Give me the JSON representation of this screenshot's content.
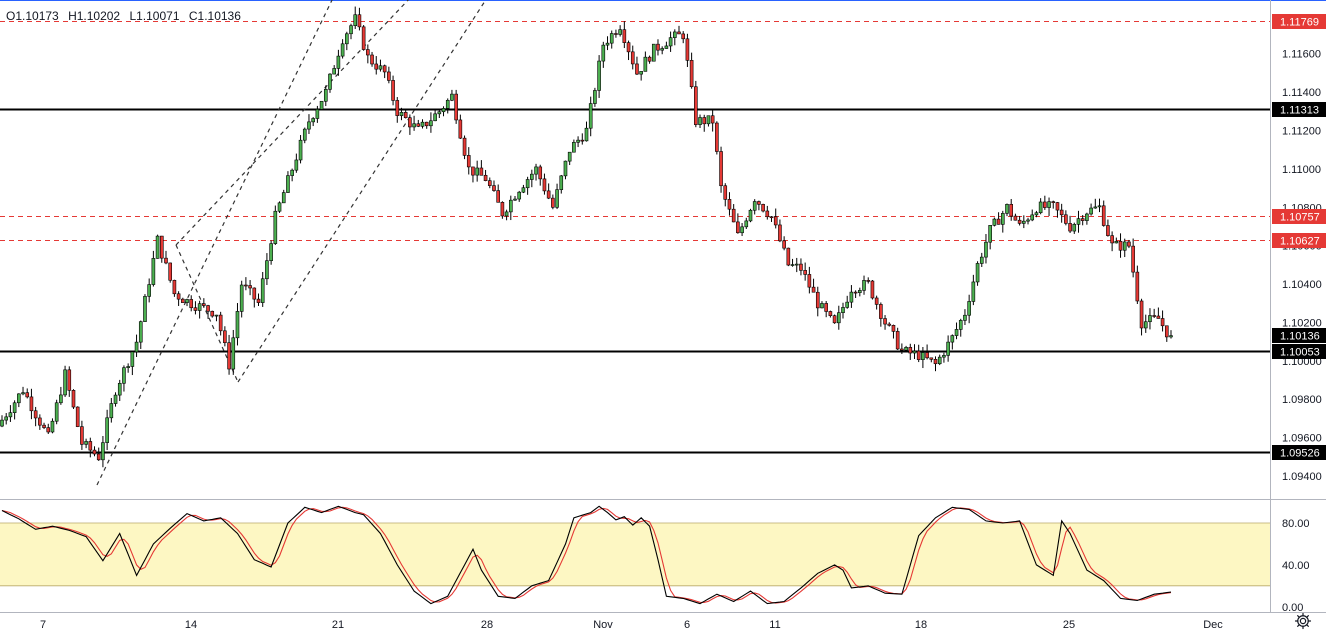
{
  "ohlc": {
    "open": "O1.10173",
    "high": "H1.10202",
    "low": "L1.10071",
    "close": "C1.10136"
  },
  "price_axis": {
    "ticks": [
      "1.11600",
      "1.11400",
      "1.11200",
      "1.11000",
      "1.10800",
      "1.10600",
      "1.10400",
      "1.10200",
      "1.10000",
      "1.09800",
      "1.09600",
      "1.09400"
    ],
    "tick_values": [
      1.116,
      1.114,
      1.112,
      1.11,
      1.108,
      1.106,
      1.104,
      1.102,
      1.1,
      1.098,
      1.096,
      1.094
    ],
    "range": [
      1.0928,
      1.1188
    ]
  },
  "oscillator_axis": {
    "ticks": [
      "80.00",
      "40.00",
      "0.00"
    ],
    "tick_values": [
      80,
      40,
      0
    ],
    "range": [
      -5,
      102
    ],
    "band": [
      20,
      80
    ]
  },
  "time_axis": {
    "labels": [
      "7",
      "14",
      "21",
      "28",
      "Nov",
      "6",
      "11",
      "18",
      "25",
      "Dec"
    ]
  },
  "levels": [
    {
      "value": 1.11769,
      "label": "1.11769",
      "style": "dashed",
      "color": "#e53935"
    },
    {
      "value": 1.11313,
      "label": "1.11313",
      "style": "solid",
      "color": "#000000"
    },
    {
      "value": 1.10757,
      "label": "1.10757",
      "style": "dashed",
      "color": "#e53935"
    },
    {
      "value": 1.10627,
      "label": "1.10627",
      "style": "dashed",
      "color": "#e53935"
    },
    {
      "value": 1.10136,
      "label": "1.10136",
      "style": "current",
      "color": "#000000"
    },
    {
      "value": 1.10053,
      "label": "1.10053",
      "style": "solid",
      "color": "#000000"
    },
    {
      "value": 1.09526,
      "label": "1.09526",
      "style": "solid",
      "color": "#000000"
    }
  ],
  "colors": {
    "up": "#4caf50",
    "down": "#e53935",
    "band_fill": "#fdf7c3",
    "k_line": "#000000",
    "d_line": "#e53935"
  },
  "chart_data": {
    "type": "candlestick",
    "price_anchors": [
      [
        0,
        1.0966
      ],
      [
        6,
        1.0985
      ],
      [
        12,
        1.096
      ],
      [
        16,
        1.0993
      ],
      [
        20,
        1.0957
      ],
      [
        24,
        1.095
      ],
      [
        28,
        1.0985
      ],
      [
        33,
        1.101
      ],
      [
        38,
        1.1063
      ],
      [
        42,
        1.1035
      ],
      [
        46,
        1.103
      ],
      [
        52,
        1.1025
      ],
      [
        55,
        1.0998
      ],
      [
        58,
        1.104
      ],
      [
        62,
        1.103
      ],
      [
        66,
        1.1075
      ],
      [
        70,
        1.11
      ],
      [
        74,
        1.1125
      ],
      [
        78,
        1.114
      ],
      [
        82,
        1.1168
      ],
      [
        85,
        1.1178
      ],
      [
        88,
        1.1158
      ],
      [
        92,
        1.115
      ],
      [
        95,
        1.113
      ],
      [
        100,
        1.112
      ],
      [
        105,
        1.113
      ],
      [
        108,
        1.1138
      ],
      [
        112,
        1.11
      ],
      [
        116,
        1.1095
      ],
      [
        120,
        1.1077
      ],
      [
        124,
        1.109
      ],
      [
        128,
        1.11
      ],
      [
        132,
        1.108
      ],
      [
        136,
        1.111
      ],
      [
        140,
        1.112
      ],
      [
        144,
        1.1165
      ],
      [
        148,
        1.1175
      ],
      [
        152,
        1.115
      ],
      [
        156,
        1.1162
      ],
      [
        160,
        1.1168
      ],
      [
        163,
        1.117
      ],
      [
        166,
        1.1125
      ],
      [
        170,
        1.1125
      ],
      [
        172,
        1.109
      ],
      [
        176,
        1.1065
      ],
      [
        180,
        1.1085
      ],
      [
        184,
        1.1075
      ],
      [
        188,
        1.105
      ],
      [
        191,
        1.1048
      ],
      [
        195,
        1.103
      ],
      [
        199,
        1.1018
      ],
      [
        203,
        1.1038
      ],
      [
        207,
        1.104
      ],
      [
        211,
        1.102
      ],
      [
        215,
        1.1005
      ],
      [
        219,
        1.1003
      ],
      [
        223,
        1.0998
      ],
      [
        227,
        1.1012
      ],
      [
        230,
        1.1025
      ],
      [
        233,
        1.105
      ],
      [
        236,
        1.1068
      ],
      [
        240,
        1.108
      ],
      [
        243,
        1.107
      ],
      [
        247,
        1.108
      ],
      [
        251,
        1.108
      ],
      [
        255,
        1.107
      ],
      [
        259,
        1.1078
      ],
      [
        262,
        1.108
      ],
      [
        265,
        1.106
      ],
      [
        269,
        1.106
      ],
      [
        272,
        1.102
      ],
      [
        276,
        1.1022
      ],
      [
        280,
        1.1008
      ],
      [
        284,
        1.1013
      ]
    ],
    "stoch_k_anchors": [
      [
        0,
        92
      ],
      [
        4,
        84
      ],
      [
        8,
        74
      ],
      [
        12,
        77
      ],
      [
        16,
        73
      ],
      [
        20,
        67
      ],
      [
        24,
        44
      ],
      [
        28,
        70
      ],
      [
        32,
        30
      ],
      [
        36,
        60
      ],
      [
        40,
        75
      ],
      [
        44,
        89
      ],
      [
        48,
        82
      ],
      [
        52,
        85
      ],
      [
        56,
        70
      ],
      [
        60,
        45
      ],
      [
        64,
        38
      ],
      [
        68,
        80
      ],
      [
        72,
        95
      ],
      [
        76,
        90
      ],
      [
        80,
        96
      ],
      [
        84,
        90
      ],
      [
        86,
        88
      ],
      [
        90,
        70
      ],
      [
        94,
        40
      ],
      [
        98,
        15
      ],
      [
        102,
        3
      ],
      [
        106,
        10
      ],
      [
        110,
        40
      ],
      [
        112,
        55
      ],
      [
        114,
        35
      ],
      [
        118,
        10
      ],
      [
        122,
        8
      ],
      [
        126,
        20
      ],
      [
        130,
        25
      ],
      [
        134,
        60
      ],
      [
        136,
        85
      ],
      [
        140,
        90
      ],
      [
        142,
        96
      ],
      [
        144,
        90
      ],
      [
        146,
        83
      ],
      [
        148,
        86
      ],
      [
        150,
        78
      ],
      [
        152,
        85
      ],
      [
        154,
        77
      ],
      [
        156,
        45
      ],
      [
        158,
        10
      ],
      [
        162,
        8
      ],
      [
        166,
        3
      ],
      [
        170,
        12
      ],
      [
        174,
        5
      ],
      [
        178,
        15
      ],
      [
        182,
        3
      ],
      [
        186,
        5
      ],
      [
        190,
        18
      ],
      [
        194,
        32
      ],
      [
        198,
        40
      ],
      [
        200,
        35
      ],
      [
        202,
        18
      ],
      [
        206,
        20
      ],
      [
        210,
        13
      ],
      [
        214,
        12
      ],
      [
        218,
        68
      ],
      [
        222,
        85
      ],
      [
        226,
        95
      ],
      [
        230,
        93
      ],
      [
        234,
        82
      ],
      [
        238,
        80
      ],
      [
        242,
        82
      ],
      [
        246,
        40
      ],
      [
        250,
        30
      ],
      [
        252,
        82
      ],
      [
        254,
        70
      ],
      [
        258,
        35
      ],
      [
        262,
        25
      ],
      [
        266,
        8
      ],
      [
        270,
        6
      ],
      [
        274,
        12
      ],
      [
        278,
        14
      ]
    ],
    "candle_count": 279
  }
}
